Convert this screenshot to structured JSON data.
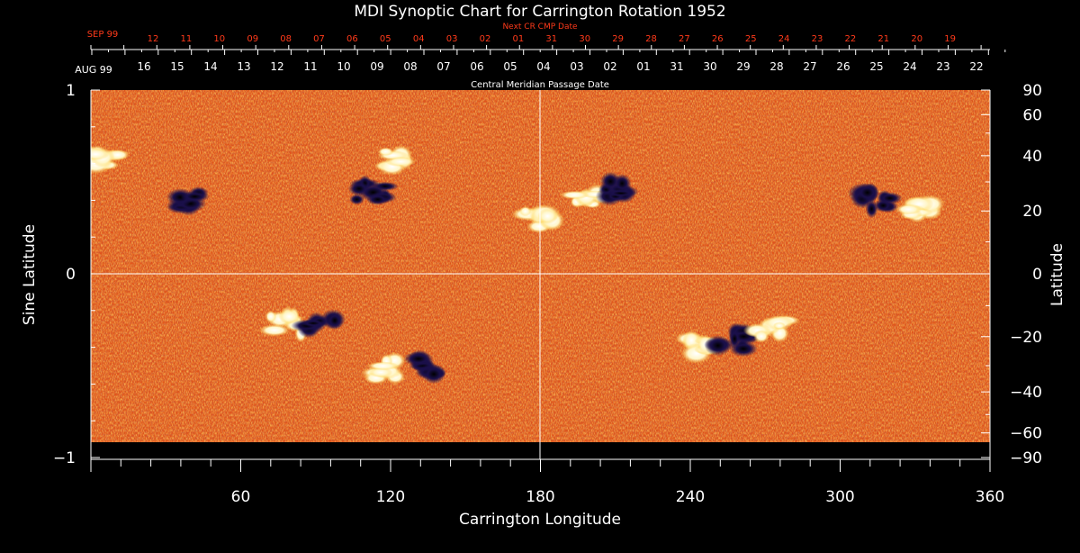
{
  "title": "MDI Synoptic Chart for Carrington Rotation 1952",
  "next_cr_label": "Next CR CMP Date",
  "cmp_label": "Central Meridian Passage Date",
  "month_top": "SEP 99",
  "month_bottom": "AUG 99",
  "next_cr_dates": [
    "12",
    "11",
    "10",
    "09",
    "08",
    "07",
    "06",
    "05",
    "04",
    "03",
    "02",
    "01",
    "31",
    "30",
    "29",
    "28",
    "27",
    "26",
    "25",
    "24",
    "23",
    "22",
    "21",
    "20",
    "19"
  ],
  "cmp_dates": [
    "16",
    "15",
    "14",
    "13",
    "12",
    "11",
    "10",
    "09",
    "08",
    "07",
    "06",
    "05",
    "04",
    "03",
    "02",
    "01",
    "31",
    "30",
    "29",
    "28",
    "27",
    "26",
    "25",
    "24",
    "23",
    "22"
  ],
  "left_axis": {
    "label": "Sine Latitude",
    "ticks": [
      "1",
      "0",
      "−1"
    ]
  },
  "right_axis": {
    "label": "Latitude",
    "ticks": [
      "90",
      "60",
      "40",
      "20",
      "0",
      "−20",
      "−40",
      "−60",
      "−90"
    ]
  },
  "x_axis": {
    "label": "Carrington Longitude",
    "ticks": [
      "60",
      "120",
      "180",
      "240",
      "300",
      "360"
    ],
    "range": [
      0,
      360
    ]
  },
  "sine_range": [
    -1,
    1
  ],
  "colors": {
    "background": "#000000",
    "field": "#e0541a",
    "positive": "#ffffff",
    "negative": "#1a0f4a",
    "axis": "#ffffff",
    "next_cr": "#ff3a1a",
    "grid": "#ffffff"
  },
  "regions": [
    {
      "polarity": "positive",
      "lon": 199,
      "sinlat": 0.42
    },
    {
      "polarity": "negative",
      "lon": 210,
      "sinlat": 0.46
    },
    {
      "polarity": "positive",
      "lon": 330,
      "sinlat": 0.34
    },
    {
      "polarity": "negative",
      "lon": 315,
      "sinlat": 0.4
    },
    {
      "polarity": "positive",
      "lon": 122,
      "sinlat": 0.62
    },
    {
      "polarity": "negative",
      "lon": 112,
      "sinlat": 0.45
    },
    {
      "polarity": "positive",
      "lon": 180,
      "sinlat": 0.3
    },
    {
      "polarity": "positive",
      "lon": 78,
      "sinlat": -0.28
    },
    {
      "polarity": "negative",
      "lon": 92,
      "sinlat": -0.27
    },
    {
      "polarity": "positive",
      "lon": 245,
      "sinlat": -0.4
    },
    {
      "polarity": "negative",
      "lon": 257,
      "sinlat": -0.36
    },
    {
      "polarity": "positive",
      "lon": 272,
      "sinlat": -0.3
    },
    {
      "polarity": "positive",
      "lon": 118,
      "sinlat": -0.52
    },
    {
      "polarity": "negative",
      "lon": 135,
      "sinlat": -0.5
    },
    {
      "polarity": "negative",
      "lon": 40,
      "sinlat": 0.4
    },
    {
      "polarity": "positive",
      "lon": 5,
      "sinlat": 0.63
    }
  ]
}
